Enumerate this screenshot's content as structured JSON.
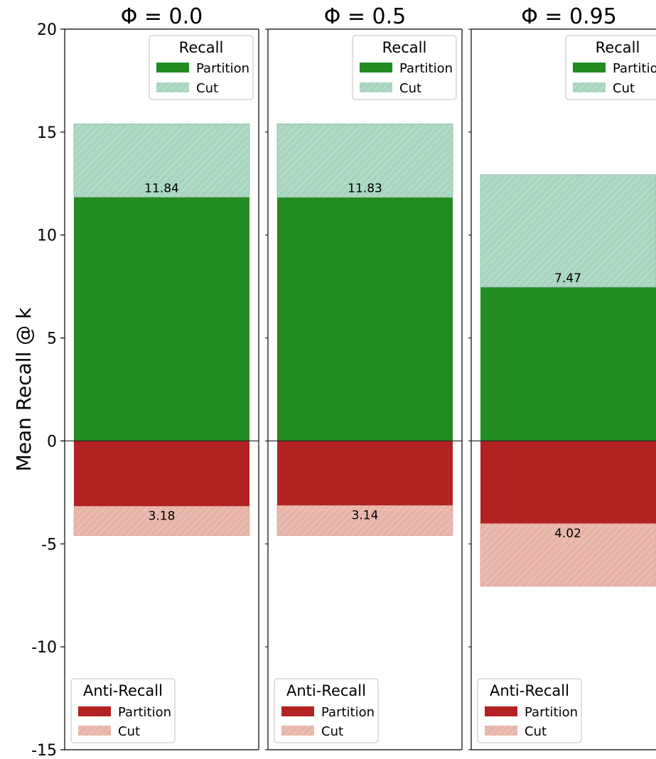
{
  "chart_data": {
    "type": "bar",
    "layout": "three stacked-bar panels sharing a y axis; positive stack = Recall, negative stack = Anti-Recall",
    "ylabel": "Mean Recall @ k",
    "ylim": [
      -15,
      20
    ],
    "yticks": [
      -15,
      -10,
      -5,
      0,
      5,
      10,
      15,
      20
    ],
    "ytick_labels": [
      "-15",
      "-10",
      "-5",
      "0",
      "5",
      "10",
      "15",
      "20"
    ],
    "grid": false,
    "colors": {
      "recall_partition": "#228b22",
      "recall_cut": "#a8d5bf",
      "anti_partition": "#b22222",
      "anti_cut": "#e8b4a8"
    },
    "legends": {
      "recall": {
        "title": "Recall",
        "placement": "upper-right",
        "entries": [
          "Partition",
          "Cut"
        ]
      },
      "anti_recall": {
        "title": "Anti-Recall",
        "placement": "lower-left",
        "entries": [
          "Partition",
          "Cut"
        ]
      }
    },
    "panels": [
      {
        "title": "Φ = 0.0",
        "recall_partition": 11.84,
        "recall_cut": 3.56,
        "anti_partition": 3.18,
        "anti_cut": 1.42,
        "recall_label": "11.84",
        "anti_label": "3.18"
      },
      {
        "title": "Φ = 0.5",
        "recall_partition": 11.83,
        "recall_cut": 3.57,
        "anti_partition": 3.14,
        "anti_cut": 1.46,
        "recall_label": "11.83",
        "anti_label": "3.14"
      },
      {
        "title": "Φ = 0.95",
        "recall_partition": 7.47,
        "recall_cut": 5.46,
        "anti_partition": 4.02,
        "anti_cut": 3.04,
        "recall_label": "7.47",
        "anti_label": "4.02"
      }
    ]
  }
}
